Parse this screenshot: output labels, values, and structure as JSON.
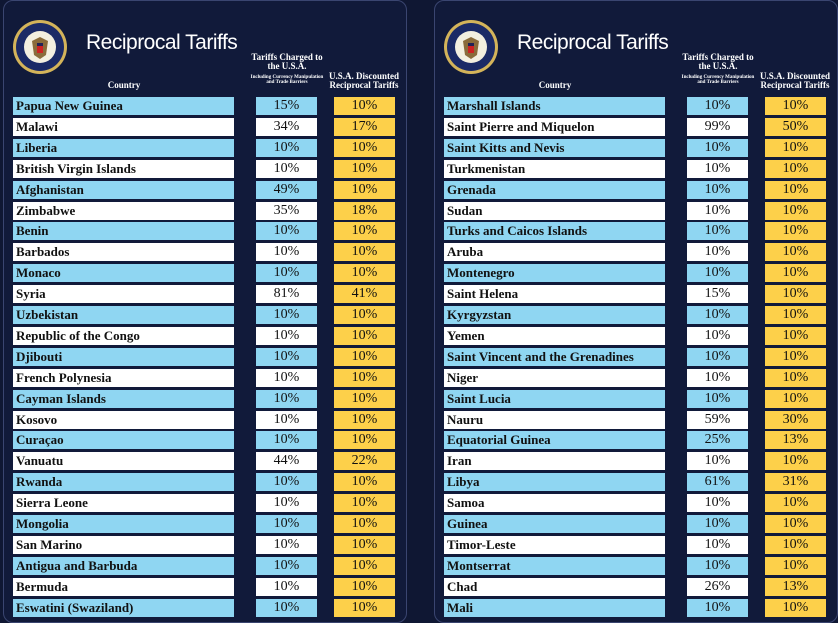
{
  "panels": [
    {
      "title": "Reciprocal Tariffs",
      "headers": {
        "country": "Country",
        "tariffs": "Tariffs Charged to the U.S.A.",
        "tariffs_note": "Including Currency Manipulation and Trade Barriers",
        "reciprocal": "U.S.A. Discounted Reciprocal Tariffs"
      },
      "rows": [
        [
          "Papua New Guinea",
          "15%",
          "10%"
        ],
        [
          "Malawi",
          "34%",
          "17%"
        ],
        [
          "Liberia",
          "10%",
          "10%"
        ],
        [
          "British Virgin Islands",
          "10%",
          "10%"
        ],
        [
          "Afghanistan",
          "49%",
          "10%"
        ],
        [
          "Zimbabwe",
          "35%",
          "18%"
        ],
        [
          "Benin",
          "10%",
          "10%"
        ],
        [
          "Barbados",
          "10%",
          "10%"
        ],
        [
          "Monaco",
          "10%",
          "10%"
        ],
        [
          "Syria",
          "81%",
          "41%"
        ],
        [
          "Uzbekistan",
          "10%",
          "10%"
        ],
        [
          "Republic of the Congo",
          "10%",
          "10%"
        ],
        [
          "Djibouti",
          "10%",
          "10%"
        ],
        [
          "French Polynesia",
          "10%",
          "10%"
        ],
        [
          "Cayman Islands",
          "10%",
          "10%"
        ],
        [
          "Kosovo",
          "10%",
          "10%"
        ],
        [
          "Curaçao",
          "10%",
          "10%"
        ],
        [
          "Vanuatu",
          "44%",
          "22%"
        ],
        [
          "Rwanda",
          "10%",
          "10%"
        ],
        [
          "Sierra Leone",
          "10%",
          "10%"
        ],
        [
          "Mongolia",
          "10%",
          "10%"
        ],
        [
          "San Marino",
          "10%",
          "10%"
        ],
        [
          "Antigua and Barbuda",
          "10%",
          "10%"
        ],
        [
          "Bermuda",
          "10%",
          "10%"
        ],
        [
          "Eswatini (Swaziland)",
          "10%",
          "10%"
        ]
      ]
    },
    {
      "title": "Reciprocal Tariffs",
      "headers": {
        "country": "Country",
        "tariffs": "Tariffs Charged to the U.S.A.",
        "tariffs_note": "Including Currency Manipulation and Trade Barriers",
        "reciprocal": "U.S.A. Discounted Reciprocal Tariffs"
      },
      "rows": [
        [
          "Marshall Islands",
          "10%",
          "10%"
        ],
        [
          "Saint Pierre and Miquelon",
          "99%",
          "50%"
        ],
        [
          "Saint Kitts and Nevis",
          "10%",
          "10%"
        ],
        [
          "Turkmenistan",
          "10%",
          "10%"
        ],
        [
          "Grenada",
          "10%",
          "10%"
        ],
        [
          "Sudan",
          "10%",
          "10%"
        ],
        [
          "Turks and Caicos Islands",
          "10%",
          "10%"
        ],
        [
          "Aruba",
          "10%",
          "10%"
        ],
        [
          "Montenegro",
          "10%",
          "10%"
        ],
        [
          "Saint Helena",
          "15%",
          "10%"
        ],
        [
          "Kyrgyzstan",
          "10%",
          "10%"
        ],
        [
          "Yemen",
          "10%",
          "10%"
        ],
        [
          "Saint Vincent and the Grenadines",
          "10%",
          "10%"
        ],
        [
          "Niger",
          "10%",
          "10%"
        ],
        [
          "Saint Lucia",
          "10%",
          "10%"
        ],
        [
          "Nauru",
          "59%",
          "30%"
        ],
        [
          "Equatorial Guinea",
          "25%",
          "13%"
        ],
        [
          "Iran",
          "10%",
          "10%"
        ],
        [
          "Libya",
          "61%",
          "31%"
        ],
        [
          "Samoa",
          "10%",
          "10%"
        ],
        [
          "Guinea",
          "10%",
          "10%"
        ],
        [
          "Timor-Leste",
          "10%",
          "10%"
        ],
        [
          "Montserrat",
          "10%",
          "10%"
        ],
        [
          "Chad",
          "26%",
          "13%"
        ],
        [
          "Mali",
          "10%",
          "10%"
        ]
      ]
    }
  ]
}
